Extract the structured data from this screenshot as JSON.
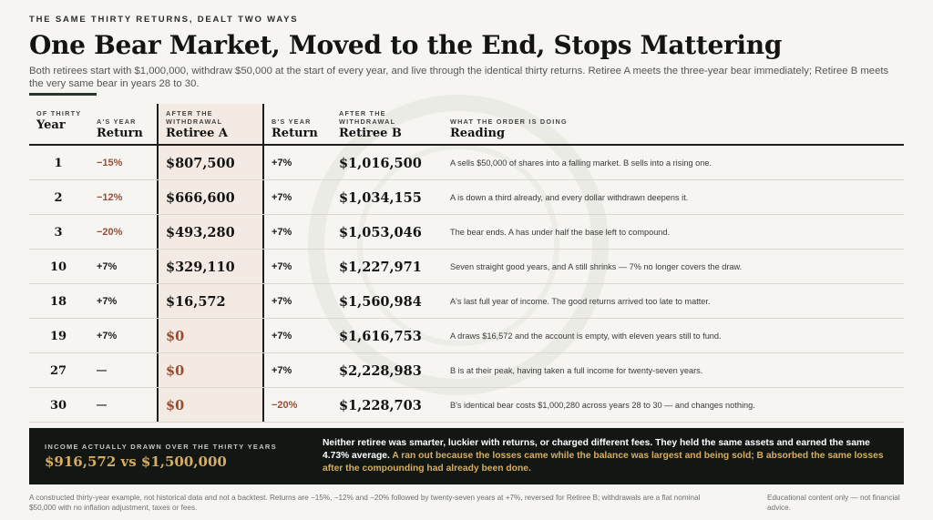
{
  "kicker": "THE SAME THIRTY RETURNS, DEALT TWO WAYS",
  "headline": "One Bear Market, Moved to the End, Stops Mattering",
  "deck": "Both retirees start with $1,000,000, withdraw $50,000 at the start of every year, and live through the identical thirty returns. Retiree A meets the three-year bear immediately; Retiree B meets the very same bear in years 28 to 30.",
  "table": {
    "headers": {
      "year": {
        "small": "OF THIRTY",
        "large": "Year"
      },
      "a_return": {
        "small": "A'S YEAR",
        "large": "Return"
      },
      "a_balance": {
        "small": "AFTER THE WITHDRAWAL",
        "large": "Retiree A"
      },
      "b_return": {
        "small": "B'S YEAR",
        "large": "Return"
      },
      "b_balance": {
        "small": "AFTER THE WITHDRAWAL",
        "large": "Retiree B"
      },
      "reading": {
        "small": "WHAT THE ORDER IS DOING",
        "large": "Reading"
      }
    },
    "rows": [
      {
        "year": "1",
        "a_return": "−15%",
        "a_balance": "$807,500",
        "b_return": "+7%",
        "b_balance": "$1,016,500",
        "reading": "A sells $50,000 of shares into a falling market. B sells into a rising one."
      },
      {
        "year": "2",
        "a_return": "−12%",
        "a_balance": "$666,600",
        "b_return": "+7%",
        "b_balance": "$1,034,155",
        "reading": "A is down a third already, and every dollar withdrawn deepens it."
      },
      {
        "year": "3",
        "a_return": "−20%",
        "a_balance": "$493,280",
        "b_return": "+7%",
        "b_balance": "$1,053,046",
        "reading": "The bear ends. A has under half the base left to compound."
      },
      {
        "year": "10",
        "a_return": "+7%",
        "a_balance": "$329,110",
        "b_return": "+7%",
        "b_balance": "$1,227,971",
        "reading": "Seven straight good years, and A still shrinks — 7% no longer covers the draw."
      },
      {
        "year": "18",
        "a_return": "+7%",
        "a_balance": "$16,572",
        "b_return": "+7%",
        "b_balance": "$1,560,984",
        "reading": "A's last full year of income. The good returns arrived too late to matter."
      },
      {
        "year": "19",
        "a_return": "+7%",
        "a_balance": "$0",
        "b_return": "+7%",
        "b_balance": "$1,616,753",
        "reading": "A draws $16,572 and the account is empty, with eleven years still to fund."
      },
      {
        "year": "27",
        "a_return": "—",
        "a_balance": "$0",
        "b_return": "+7%",
        "b_balance": "$2,228,983",
        "reading": "B is at their peak, having taken a full income for twenty-seven years."
      },
      {
        "year": "30",
        "a_return": "—",
        "a_balance": "$0",
        "b_return": "−20%",
        "b_balance": "$1,228,703",
        "reading": "B's identical bear costs $1,000,280 across years 28 to 30 — and changes nothing."
      }
    ]
  },
  "summary": {
    "label": "INCOME ACTUALLY DRAWN OVER THE THIRTY YEARS",
    "figure": "$916,572 vs $1,500,000",
    "text_white": "Neither retiree was smarter, luckier with returns, or charged different fees. They held the same assets and earned the same 4.73% average.",
    "text_gold": "A ran out because the losses came while the balance was largest and being sold; B absorbed the same losses after the compounding had already been done."
  },
  "footnote": "A constructed thirty-year example, not historical data and not a backtest. Returns are −15%, −12% and −20% followed by twenty-seven years at +7%, reversed for Retiree B; withdrawals are a flat nominal $50,000 with no inflation adjustment, taxes or fees.",
  "disclaimer": "Educational content only — not financial advice.",
  "colors": {
    "negative": "#a14a32",
    "accent_gold": "#d6ad62",
    "band_bg": "#121714"
  }
}
